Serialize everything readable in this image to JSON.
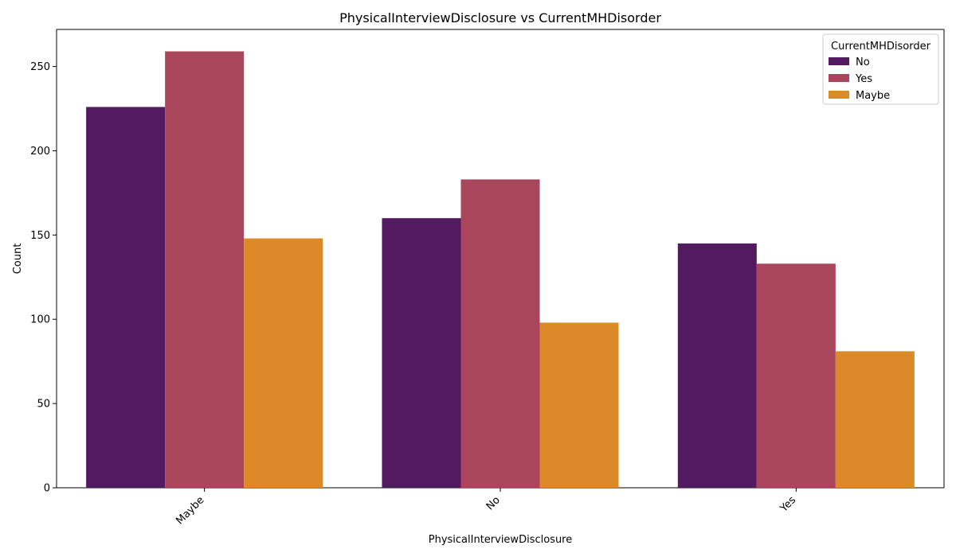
{
  "chart_data": {
    "type": "bar",
    "title": "PhysicalInterviewDisclosure vs CurrentMHDisorder",
    "xlabel": "PhysicalInterviewDisclosure",
    "ylabel": "Count",
    "categories": [
      "Maybe",
      "No",
      "Yes"
    ],
    "series": [
      {
        "name": "No",
        "color": "#521b5f",
        "values": [
          226,
          160,
          145
        ]
      },
      {
        "name": "Yes",
        "color": "#a9465b",
        "values": [
          259,
          183,
          133
        ]
      },
      {
        "name": "Maybe",
        "color": "#dc8a28",
        "values": [
          148,
          98,
          81
        ]
      }
    ],
    "ylim": [
      0,
      272
    ],
    "yticks": [
      0,
      50,
      100,
      150,
      200,
      250
    ],
    "legend": {
      "title": "CurrentMHDisorder",
      "position": "top-right"
    },
    "grid": false
  }
}
